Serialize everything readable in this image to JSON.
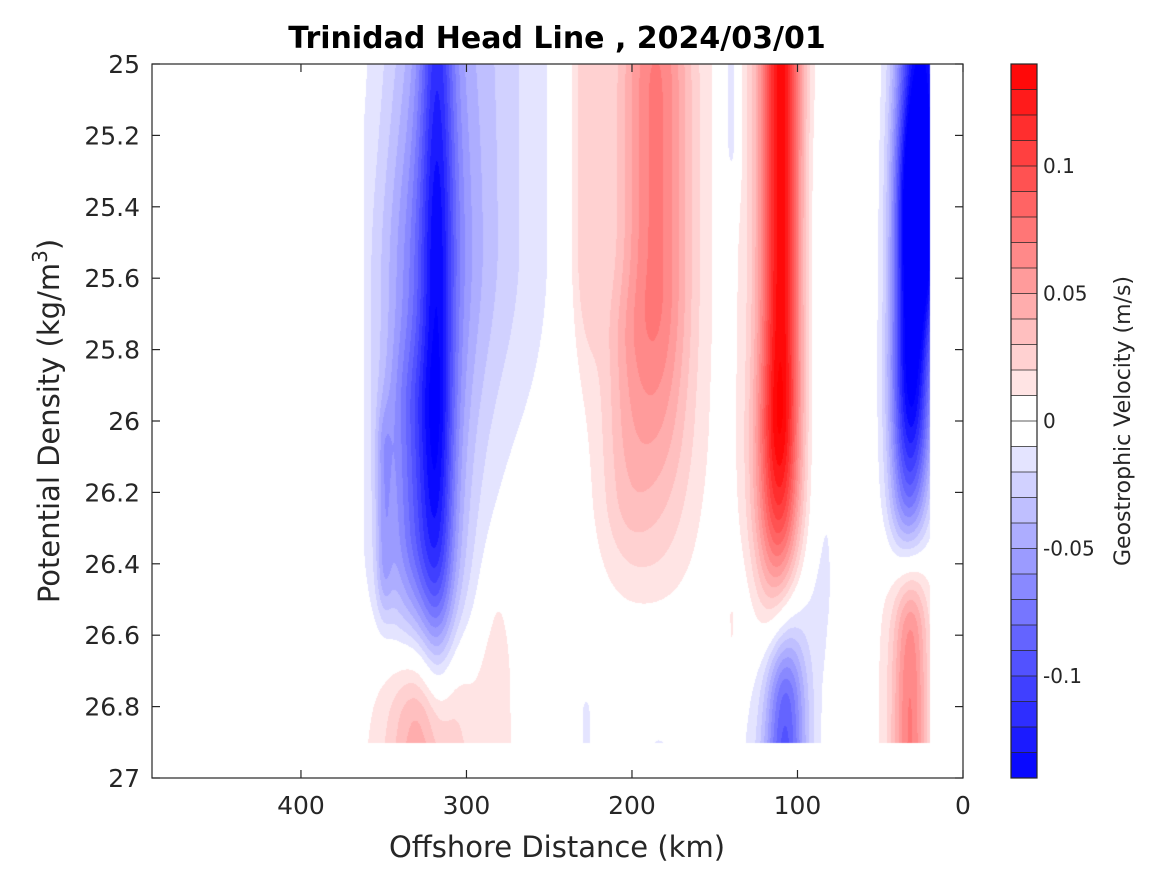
{
  "chart_data": {
    "type": "heatmap",
    "subtype": "filled-contour section",
    "title": "Trinidad Head Line , 2024/03/01",
    "xlabel": "Offshore Distance (km)",
    "ylabel_main": "Potential Density (kg/m",
    "ylabel_sup": "3",
    "ylabel_close": ")",
    "xlim": [
      490,
      0
    ],
    "x_reversed": true,
    "ylim": [
      25,
      27
    ],
    "y_reversed": true,
    "x_ticks": [
      {
        "value": 400,
        "label": "400"
      },
      {
        "value": 300,
        "label": "300"
      },
      {
        "value": 200,
        "label": "200"
      },
      {
        "value": 100,
        "label": "100"
      },
      {
        "value": 0,
        "label": "0"
      }
    ],
    "y_ticks": [
      {
        "value": 25,
        "label": "25"
      },
      {
        "value": 25.2,
        "label": "25.2"
      },
      {
        "value": 25.4,
        "label": "25.4"
      },
      {
        "value": 25.6,
        "label": "25.6"
      },
      {
        "value": 25.8,
        "label": "25.8"
      },
      {
        "value": 26,
        "label": "26"
      },
      {
        "value": 26.2,
        "label": "26.2"
      },
      {
        "value": 26.4,
        "label": "26.4"
      },
      {
        "value": 26.6,
        "label": "26.6"
      },
      {
        "value": 26.8,
        "label": "26.8"
      },
      {
        "value": 27,
        "label": "27"
      }
    ],
    "colorbar": {
      "label": "Geostrophic Velocity (m/s)",
      "min": -0.14,
      "max": 0.14,
      "step": 0.01,
      "cmap": "blue-white-red",
      "ticks": [
        {
          "value": 0.1,
          "label": "0.1"
        },
        {
          "value": 0.05,
          "label": "0.05"
        },
        {
          "value": 0,
          "label": "0"
        },
        {
          "value": -0.05,
          "label": "-0.05"
        },
        {
          "value": -0.1,
          "label": "-0.1"
        }
      ]
    },
    "features": [
      {
        "type": "core",
        "x": 318,
        "y": 25.0,
        "y_end": 26.0,
        "rx": 10,
        "ry": 0.8,
        "v": -0.06
      },
      {
        "type": "core",
        "x": 322,
        "y": 25.5,
        "y_end": 26.1,
        "rx": 26,
        "ry": 0.8,
        "v": -0.045
      },
      {
        "type": "core",
        "x": 300,
        "y": 25.0,
        "y_end": 25.5,
        "rx": 48,
        "ry": 0.6,
        "v": -0.03
      },
      {
        "type": "core",
        "x": 330,
        "y": 26.0,
        "y_end": 26.3,
        "rx": 18,
        "ry": 0.25,
        "v": -0.03
      },
      {
        "type": "core",
        "x": 335,
        "y": 25.6,
        "y_end": 26.5,
        "rx": 28,
        "ry": 0.35,
        "v": -0.012
      },
      {
        "type": "core",
        "x": 350,
        "y": 26.1,
        "y_end": 26.4,
        "rx": 5,
        "ry": 0.15,
        "v": -0.025
      },
      {
        "type": "core",
        "x": 140,
        "y": 25.0,
        "y_end": 25.2,
        "rx": 5,
        "ry": 0.18,
        "v": -0.02
      },
      {
        "type": "core",
        "x": 85,
        "y": 25.5,
        "y_end": 26.2,
        "rx": 11,
        "ry": 0.45,
        "v": -0.012
      },
      {
        "type": "core",
        "x": 25,
        "y": 25.0,
        "y_end": 25.4,
        "rx": 15,
        "ry": 0.35,
        "v": -0.125
      },
      {
        "type": "core",
        "x": 30,
        "y": 25.4,
        "y_end": 25.9,
        "rx": 12,
        "ry": 0.35,
        "v": -0.09
      },
      {
        "type": "core",
        "x": 35,
        "y": 25.9,
        "y_end": 26.2,
        "rx": 12,
        "ry": 0.3,
        "v": -0.05
      },
      {
        "type": "core",
        "x": 185,
        "y": 25.1,
        "y_end": 25.6,
        "rx": 20,
        "ry": 0.5,
        "v": 0.045
      },
      {
        "type": "core",
        "x": 190,
        "y": 25.0,
        "y_end": 26.0,
        "rx": 32,
        "ry": 0.55,
        "v": 0.028
      },
      {
        "type": "core",
        "x": 228,
        "y": 25.0,
        "y_end": 25.5,
        "rx": 10,
        "ry": 0.35,
        "v": 0.025
      },
      {
        "type": "core",
        "x": 205,
        "y": 25.8,
        "y_end": 26.2,
        "rx": 15,
        "ry": 0.2,
        "v": 0.012
      },
      {
        "type": "core",
        "x": 110,
        "y": 25.0,
        "y_end": 25.9,
        "rx": 11,
        "ry": 0.5,
        "v": 0.085
      },
      {
        "type": "core",
        "x": 112,
        "y": 25.0,
        "y_end": 26.2,
        "rx": 18,
        "ry": 0.55,
        "v": 0.05
      },
      {
        "type": "core",
        "x": 118,
        "y": 26.1,
        "y_end": 26.4,
        "rx": 12,
        "ry": 0.3,
        "v": 0.018
      },
      {
        "type": "core",
        "x": 325,
        "y": 26.85,
        "y_end": 26.9,
        "rx": 22,
        "ry": 0.22,
        "v": 0.05
      },
      {
        "type": "core",
        "x": 325,
        "y": 26.72,
        "y_end": 26.9,
        "rx": 40,
        "ry": 0.2,
        "v": 0.02
      },
      {
        "type": "core",
        "x": 282,
        "y": 26.55,
        "y_end": 26.9,
        "rx": 11,
        "ry": 0.2,
        "v": 0.012
      },
      {
        "type": "core",
        "x": 108,
        "y": 26.8,
        "y_end": 26.9,
        "rx": 12,
        "ry": 0.25,
        "v": -0.075
      },
      {
        "type": "core",
        "x": 110,
        "y": 26.55,
        "y_end": 26.9,
        "rx": 22,
        "ry": 0.25,
        "v": -0.03
      },
      {
        "type": "core",
        "x": 185,
        "y": 26.72,
        "y_end": 26.9,
        "rx": 30,
        "ry": 0.2,
        "v": -0.012
      },
      {
        "type": "core",
        "x": 32,
        "y": 26.6,
        "y_end": 26.9,
        "rx": 10,
        "ry": 0.22,
        "v": 0.05
      },
      {
        "type": "core",
        "x": 35,
        "y": 26.45,
        "y_end": 26.9,
        "rx": 17,
        "ry": 0.2,
        "v": 0.022
      },
      {
        "type": "core",
        "x": 228,
        "y": 26.82,
        "y_end": 26.9,
        "rx": 4,
        "ry": 0.07,
        "v": -0.012
      },
      {
        "type": "core",
        "x": 80,
        "y": 26.8,
        "y_end": 26.9,
        "rx": 4,
        "ry": 0.08,
        "v": 0.012
      },
      {
        "type": "core",
        "x": 140,
        "y": 26.55,
        "y_end": 26.6,
        "rx": 3,
        "ry": 0.05,
        "v": 0.012
      }
    ],
    "data_region": {
      "x_min": 20,
      "x_max": 362,
      "y_min": 25.0,
      "y_max": 26.9
    },
    "grid": false
  }
}
